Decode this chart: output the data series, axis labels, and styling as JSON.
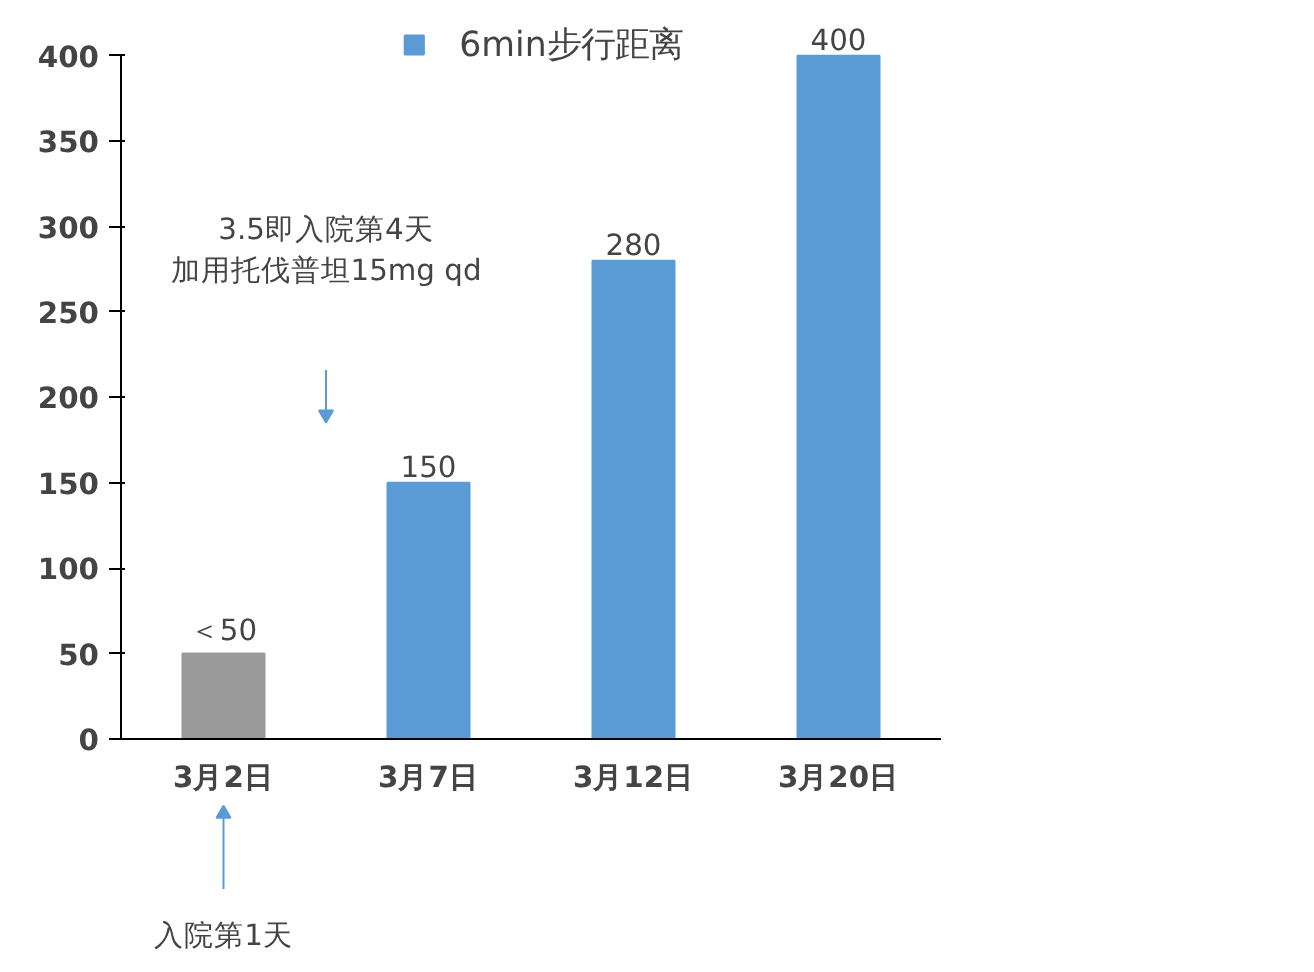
{
  "chart_data": {
    "type": "bar",
    "categories": [
      "3月2日",
      "3月7日",
      "3月12日",
      "3月20日"
    ],
    "series": [
      {
        "name": "6min步行距离",
        "color": "#5b9bd5",
        "colors": [
          "#9a9a9a",
          "#5b9bd5",
          "#5b9bd5",
          "#5b9bd5"
        ],
        "values": [
          50,
          150,
          280,
          400
        ],
        "value_labels": [
          "＜50",
          "150",
          "280",
          "400"
        ]
      }
    ],
    "ylim": [
      0,
      400
    ],
    "yticks": [
      0,
      50,
      100,
      150,
      200,
      250,
      300,
      350,
      400
    ],
    "grid": false,
    "legend": "top",
    "annotations": [
      "3.5即入院第4天",
      "加用托伐普坦15mg qd",
      "入院第1天"
    ]
  }
}
